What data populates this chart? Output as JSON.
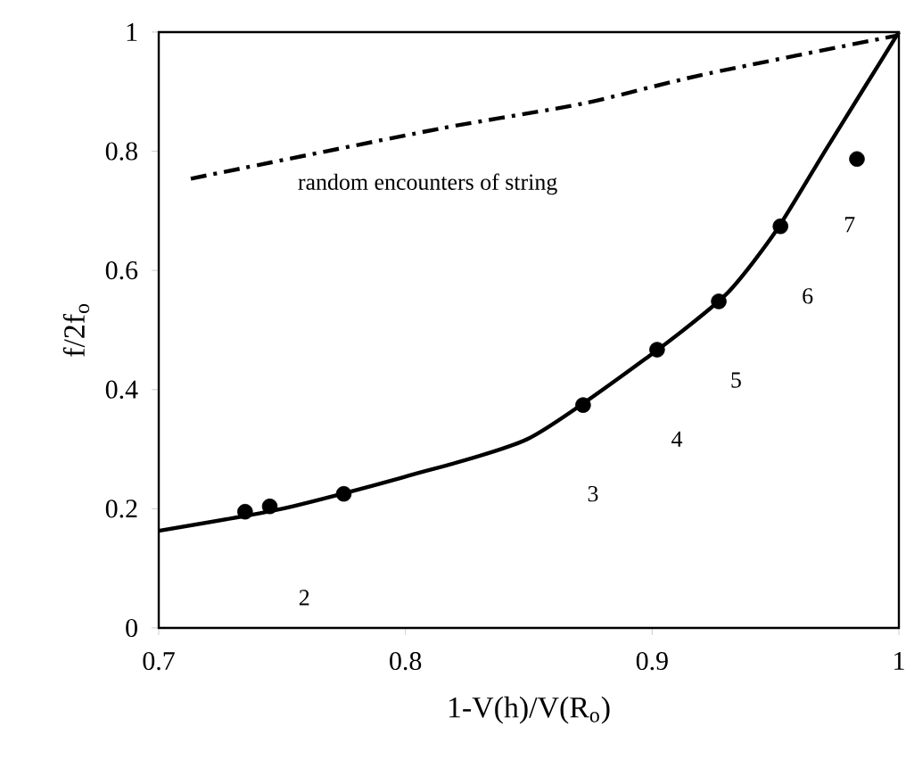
{
  "chart_data": {
    "type": "line",
    "xlabel": "1-V(h)/V(R$_{o}$)",
    "ylabel": "f/2f$_{o}$",
    "xlim": [
      0.7,
      1
    ],
    "ylim": [
      0,
      1
    ],
    "xticks": [
      0.7,
      0.8,
      0.9,
      1
    ],
    "yticks": [
      0,
      0.2,
      0.4,
      0.6,
      0.8,
      1
    ],
    "series": [
      {
        "type": "scatter",
        "marker": "circle",
        "color": "#000000",
        "x": [
          0.735,
          0.745,
          0.775,
          0.872,
          0.902,
          0.927,
          0.952,
          0.983
        ],
        "values": [
          0.195,
          0.204,
          0.225,
          0.374,
          0.467,
          0.548,
          0.674,
          0.787
        ]
      },
      {
        "line_style": "solid",
        "color": "#000000",
        "x": [
          0.7,
          0.75,
          0.8,
          0.85,
          0.9,
          0.93,
          0.95,
          0.97,
          0.985,
          1.0
        ],
        "values": [
          0.163,
          0.2,
          0.254,
          0.318,
          0.46,
          0.56,
          0.665,
          0.8,
          0.9,
          1.0
        ]
      },
      {
        "line_style": "dashed",
        "color": "#000000",
        "x": [
          0.713,
          0.814,
          0.872,
          0.92,
          1.0
        ],
        "values": [
          0.754,
          0.838,
          0.88,
          0.928,
          0.995
        ]
      }
    ],
    "annotations": [
      "random encounters of string",
      "2",
      "3",
      "4",
      "5",
      "6",
      "7"
    ]
  }
}
